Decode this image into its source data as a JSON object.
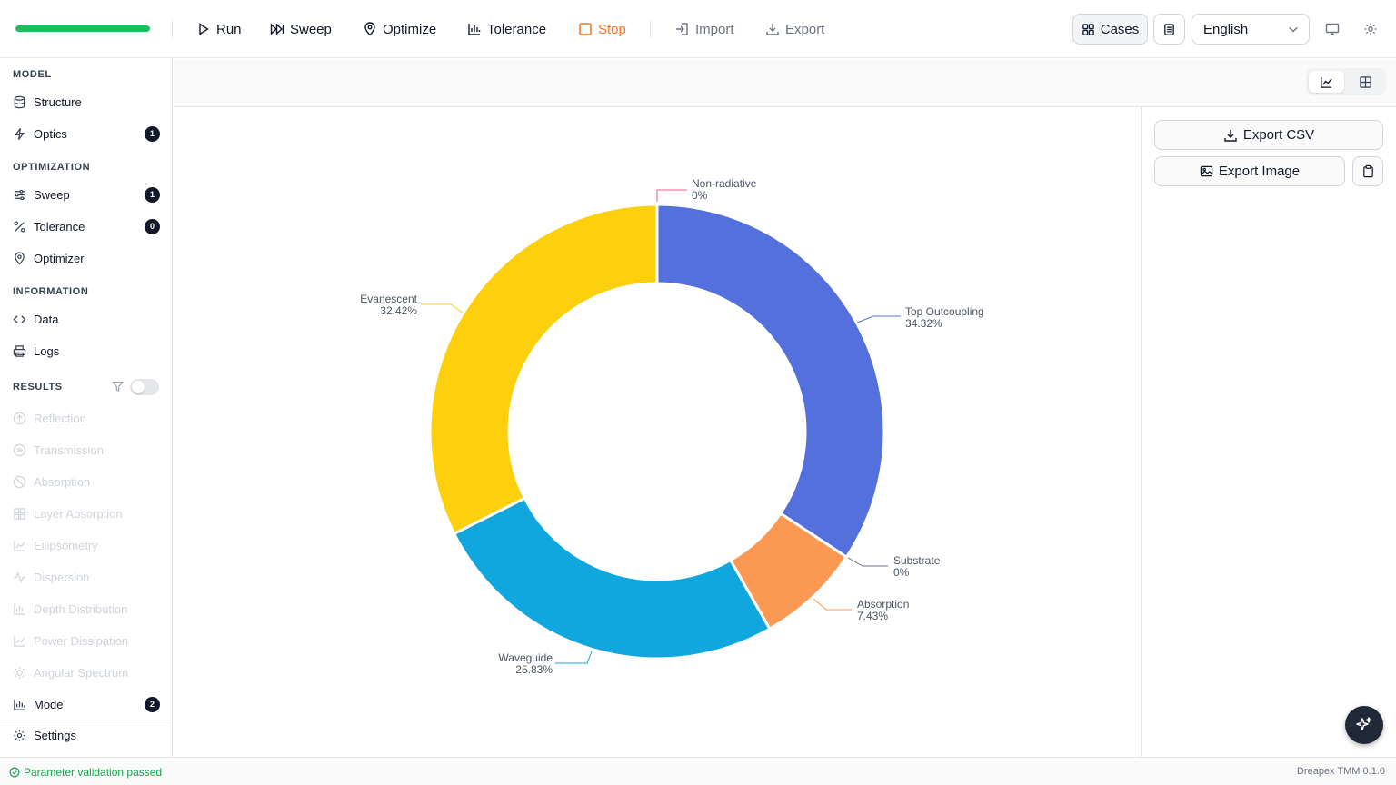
{
  "toolbar": {
    "progress": 1.0,
    "run": "Run",
    "sweep": "Sweep",
    "optimize": "Optimize",
    "tolerance": "Tolerance",
    "stop": "Stop",
    "import": "Import",
    "export": "Export",
    "cases": "Cases",
    "language": "English"
  },
  "sidebar": {
    "model_title": "MODEL",
    "structure": "Structure",
    "optics": "Optics",
    "optics_badge": "1",
    "optimization_title": "OPTIMIZATION",
    "sweep": "Sweep",
    "sweep_badge": "1",
    "tolerance": "Tolerance",
    "tolerance_badge": "0",
    "optimizer": "Optimizer",
    "information_title": "INFORMATION",
    "data": "Data",
    "logs": "Logs",
    "results_title": "RESULTS",
    "results": [
      "Reflection",
      "Transmission",
      "Absorption",
      "Layer Absorption",
      "Ellipsometry",
      "Dispersion",
      "Depth Distribution",
      "Power Dissipation",
      "Angular Spectrum"
    ],
    "mode": "Mode",
    "mode_badge": "2",
    "settings": "Settings"
  },
  "panel": {
    "export_csv": "Export CSV",
    "export_image": "Export Image"
  },
  "status": {
    "message": "Parameter validation passed",
    "version": "Dreapex TMM 0.1.0"
  },
  "chart_data": {
    "type": "pie",
    "donut": true,
    "slices": [
      {
        "label": "Top Outcoupling",
        "value": 34.32,
        "display": "34.32%",
        "color": "#5470dd"
      },
      {
        "label": "Substrate",
        "value": 0,
        "display": "0%",
        "color": "#6b7280"
      },
      {
        "label": "Absorption",
        "value": 7.43,
        "display": "7.43%",
        "color": "#fb9851"
      },
      {
        "label": "Waveguide",
        "value": 25.83,
        "display": "25.83%",
        "color": "#10a7df"
      },
      {
        "label": "Evanescent",
        "value": 32.42,
        "display": "32.42%",
        "color": "#fdd00e"
      },
      {
        "label": "Non-radiative",
        "value": 0,
        "display": "0%",
        "color": "#ef5a86"
      }
    ]
  }
}
